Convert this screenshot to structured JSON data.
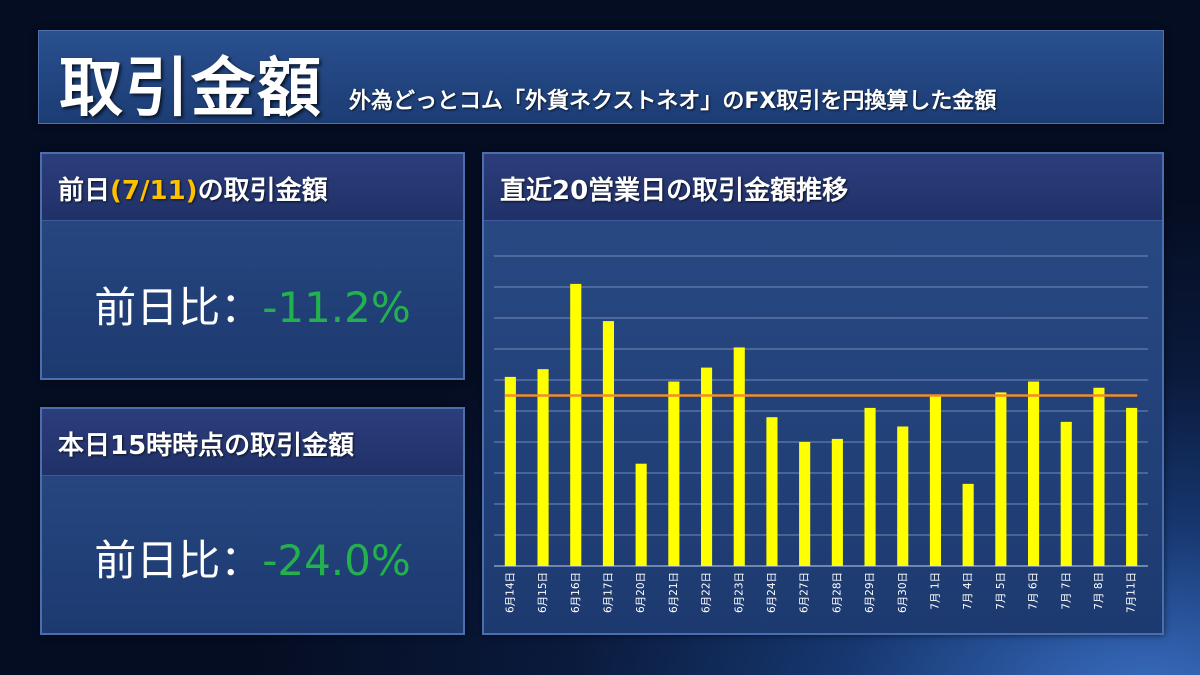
{
  "header": {
    "title": "取引金額",
    "subtitle": "外為どっとコム「外貨ネクストネオ」のFX取引を円換算した金額"
  },
  "card_prev": {
    "title_before": "前日",
    "title_highlight": "(7/11)",
    "title_after": "の取引金額",
    "stat_label": "前日比：",
    "stat_value": "-11.2%"
  },
  "card_today": {
    "title": "本日15時時点の取引金額",
    "stat_label": "前日比：",
    "stat_value": "-24.0%"
  },
  "chart_panel": {
    "title": "直近20営業日の取引金額推移"
  },
  "colors": {
    "bar": "#ffff00",
    "average_line": "#f28c28",
    "stat_value": "#22b14c",
    "highlight": "#ffc000"
  },
  "chart_data": {
    "type": "bar",
    "title": "直近20営業日の取引金額推移",
    "categories": [
      "6月14日",
      "6月15日",
      "6月16日",
      "6月17日",
      "6月20日",
      "6月21日",
      "6月22日",
      "6月23日",
      "6月24日",
      "6月27日",
      "6月28日",
      "6月29日",
      "6月30日",
      "7月 1日",
      "7月 4日",
      "7月 5日",
      "7月 6日",
      "7月 7日",
      "7月 8日",
      "7月11日"
    ],
    "values": [
      6.1,
      6.35,
      9.1,
      7.9,
      3.3,
      5.95,
      6.4,
      7.05,
      4.8,
      4.0,
      4.1,
      5.1,
      4.5,
      5.5,
      2.65,
      5.6,
      5.95,
      4.65,
      5.75,
      5.1
    ],
    "average_line": 5.5,
    "ylim": [
      0,
      10
    ],
    "y_gridlines": 10,
    "grid": true,
    "y_tick_labels_shown": false,
    "xlabel": "",
    "ylabel": ""
  }
}
